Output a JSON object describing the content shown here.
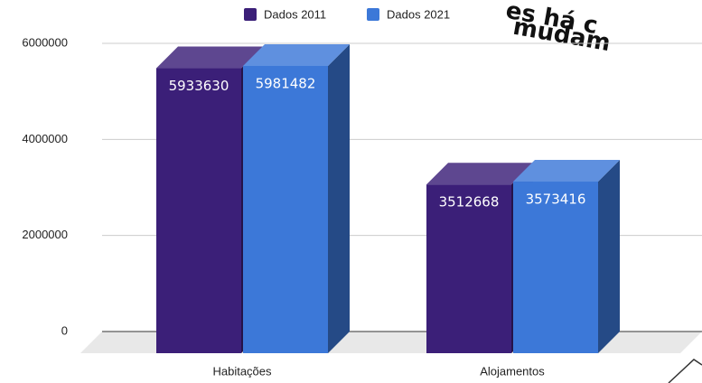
{
  "chart_data": {
    "type": "bar3d",
    "categories": [
      "Habitações",
      "Alojamentos"
    ],
    "series": [
      {
        "name": "Dados 2011",
        "color": "#3b1f78",
        "values": [
          5933630,
          3512668
        ]
      },
      {
        "name": "Dados 2021",
        "color": "#3c78d8",
        "values": [
          5981482,
          3573416
        ]
      }
    ],
    "ylim": [
      0,
      6000000
    ],
    "yticks": [
      0,
      2000000,
      4000000,
      6000000
    ],
    "grid": true,
    "legend": "top",
    "annotations": [
      "es há c",
      "mudam"
    ]
  }
}
